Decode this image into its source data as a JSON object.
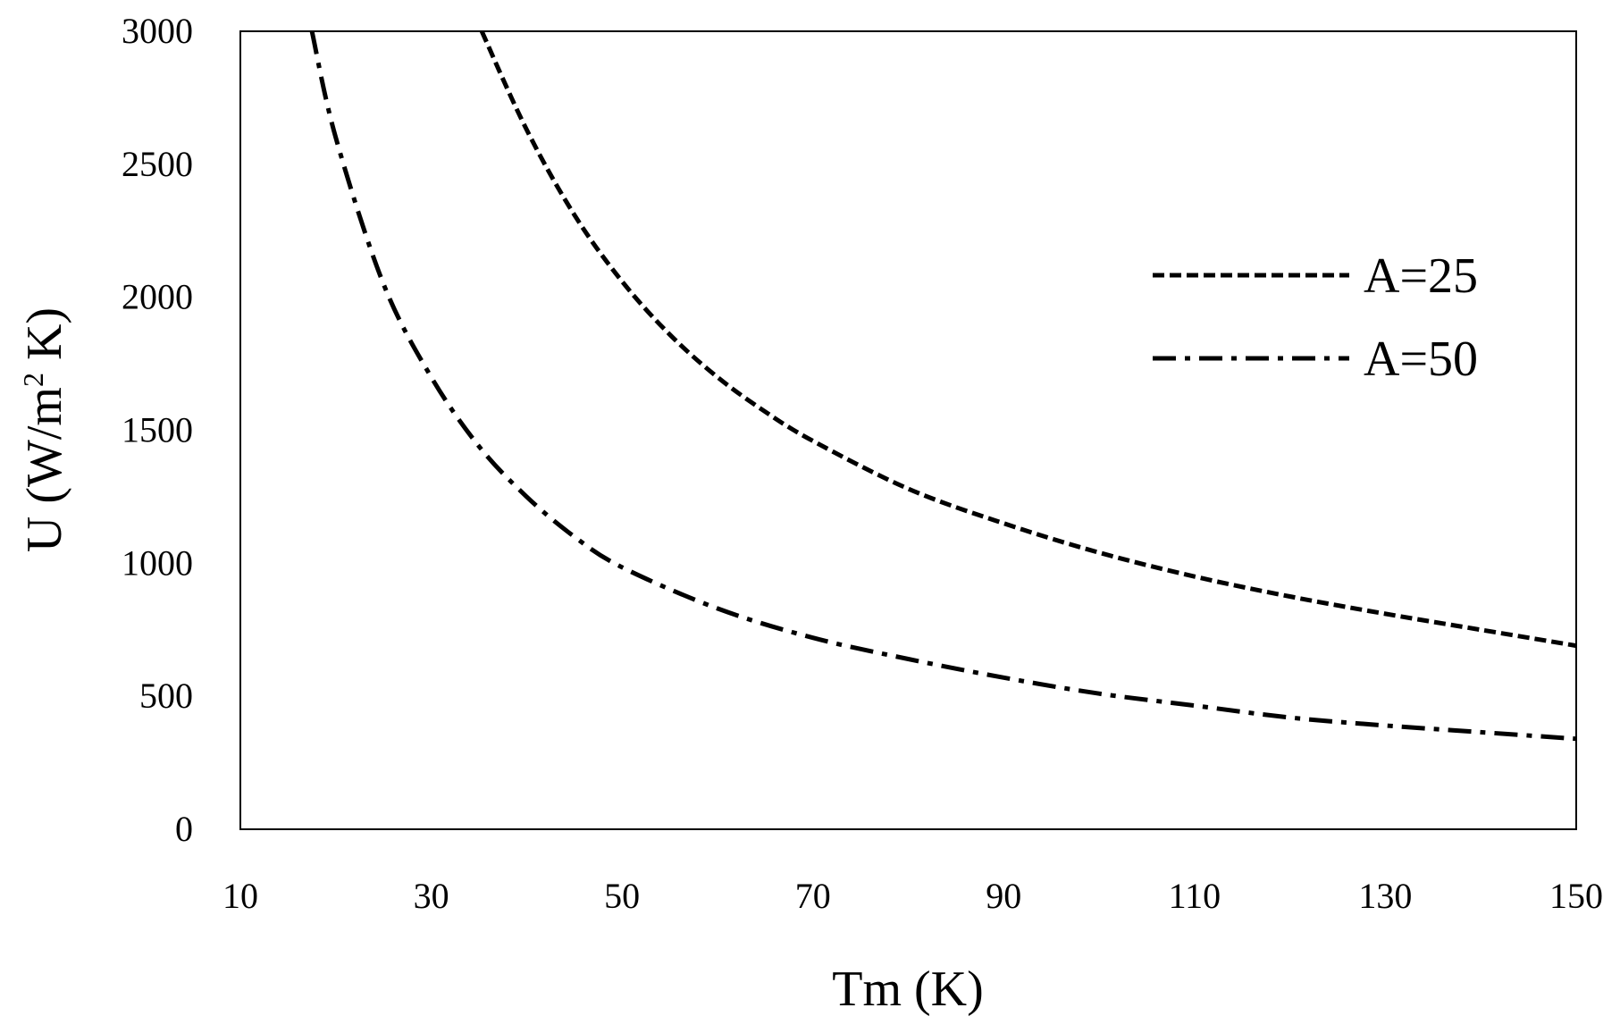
{
  "chart_data": {
    "type": "line",
    "title": "",
    "xlabel": "Tm (K)",
    "ylabel_main": "U (W/m",
    "ylabel_sup": "2",
    "ylabel_tail": " K)",
    "xlim": [
      10,
      150
    ],
    "ylim": [
      0,
      3000
    ],
    "xticks": [
      10,
      30,
      50,
      70,
      90,
      110,
      130,
      150
    ],
    "yticks": [
      0,
      500,
      1000,
      1500,
      2000,
      2500,
      3000
    ],
    "grid": false,
    "legend_position": "right",
    "series": [
      {
        "name": "A=25",
        "dash": "dashed",
        "x": [
          35.3,
          40,
          45,
          50,
          55,
          60,
          65,
          70,
          80,
          90,
          100,
          110,
          120,
          130,
          140,
          150
        ],
        "y": [
          3000,
          2630,
          2310,
          2060,
          1860,
          1700,
          1570,
          1460,
          1280,
          1150,
          1040,
          950,
          875,
          810,
          750,
          690
        ]
      },
      {
        "name": "A=50",
        "dash": "dashdot",
        "x": [
          17.5,
          20,
          25,
          30,
          35,
          40,
          45,
          50,
          60,
          70,
          80,
          90,
          100,
          110,
          120,
          130,
          140,
          150
        ],
        "y": [
          3000,
          2600,
          2050,
          1700,
          1440,
          1250,
          1100,
          985,
          830,
          720,
          640,
          570,
          510,
          465,
          420,
          390,
          365,
          340
        ]
      }
    ]
  }
}
